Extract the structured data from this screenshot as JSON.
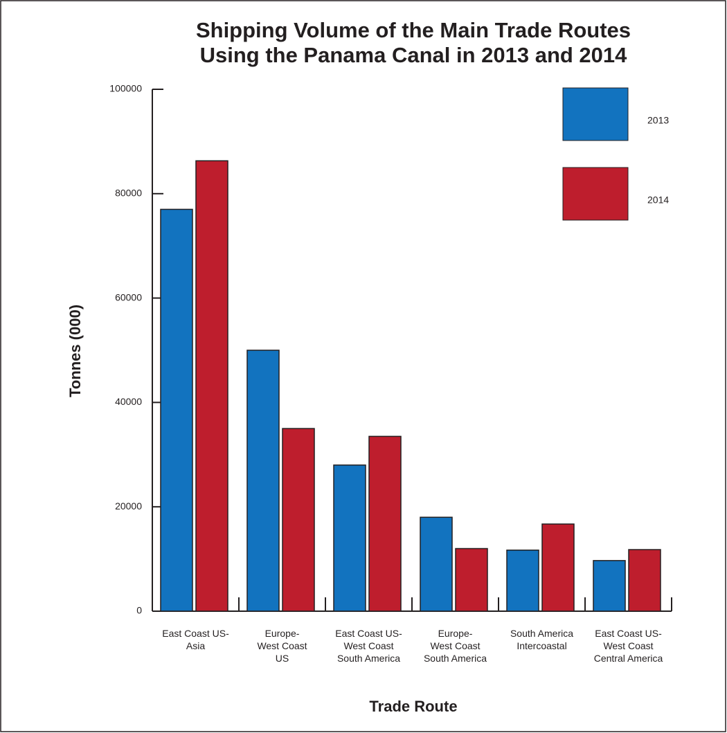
{
  "chart_data": {
    "type": "bar",
    "title": "Shipping Volume of the Main Trade Routes\nUsing the Panama Canal in 2013 and 2014",
    "x_label": "Trade Route",
    "y_label": "Tonnes (000)",
    "categories": [
      "East Coast US-\nAsia",
      "Europe-\nWest Coast\nUS",
      "East Coast US-\nWest Coast\nSouth America",
      "Europe-\nWest Coast\nSouth America",
      "South America\nIntercoastal",
      "East Coast US-\nWest Coast\nCentral America"
    ],
    "series": [
      {
        "name": "2013",
        "color": "#1273bf",
        "values": [
          77000,
          50000,
          28000,
          18000,
          11700,
          9700
        ]
      },
      {
        "name": "2014",
        "color": "#be1e2d",
        "values": [
          86300,
          35000,
          33500,
          12000,
          16700,
          11800
        ]
      }
    ],
    "ylim": [
      0,
      100000
    ],
    "yticks": [
      0,
      20000,
      40000,
      60000,
      80000,
      100000
    ],
    "legend": "top-right"
  }
}
